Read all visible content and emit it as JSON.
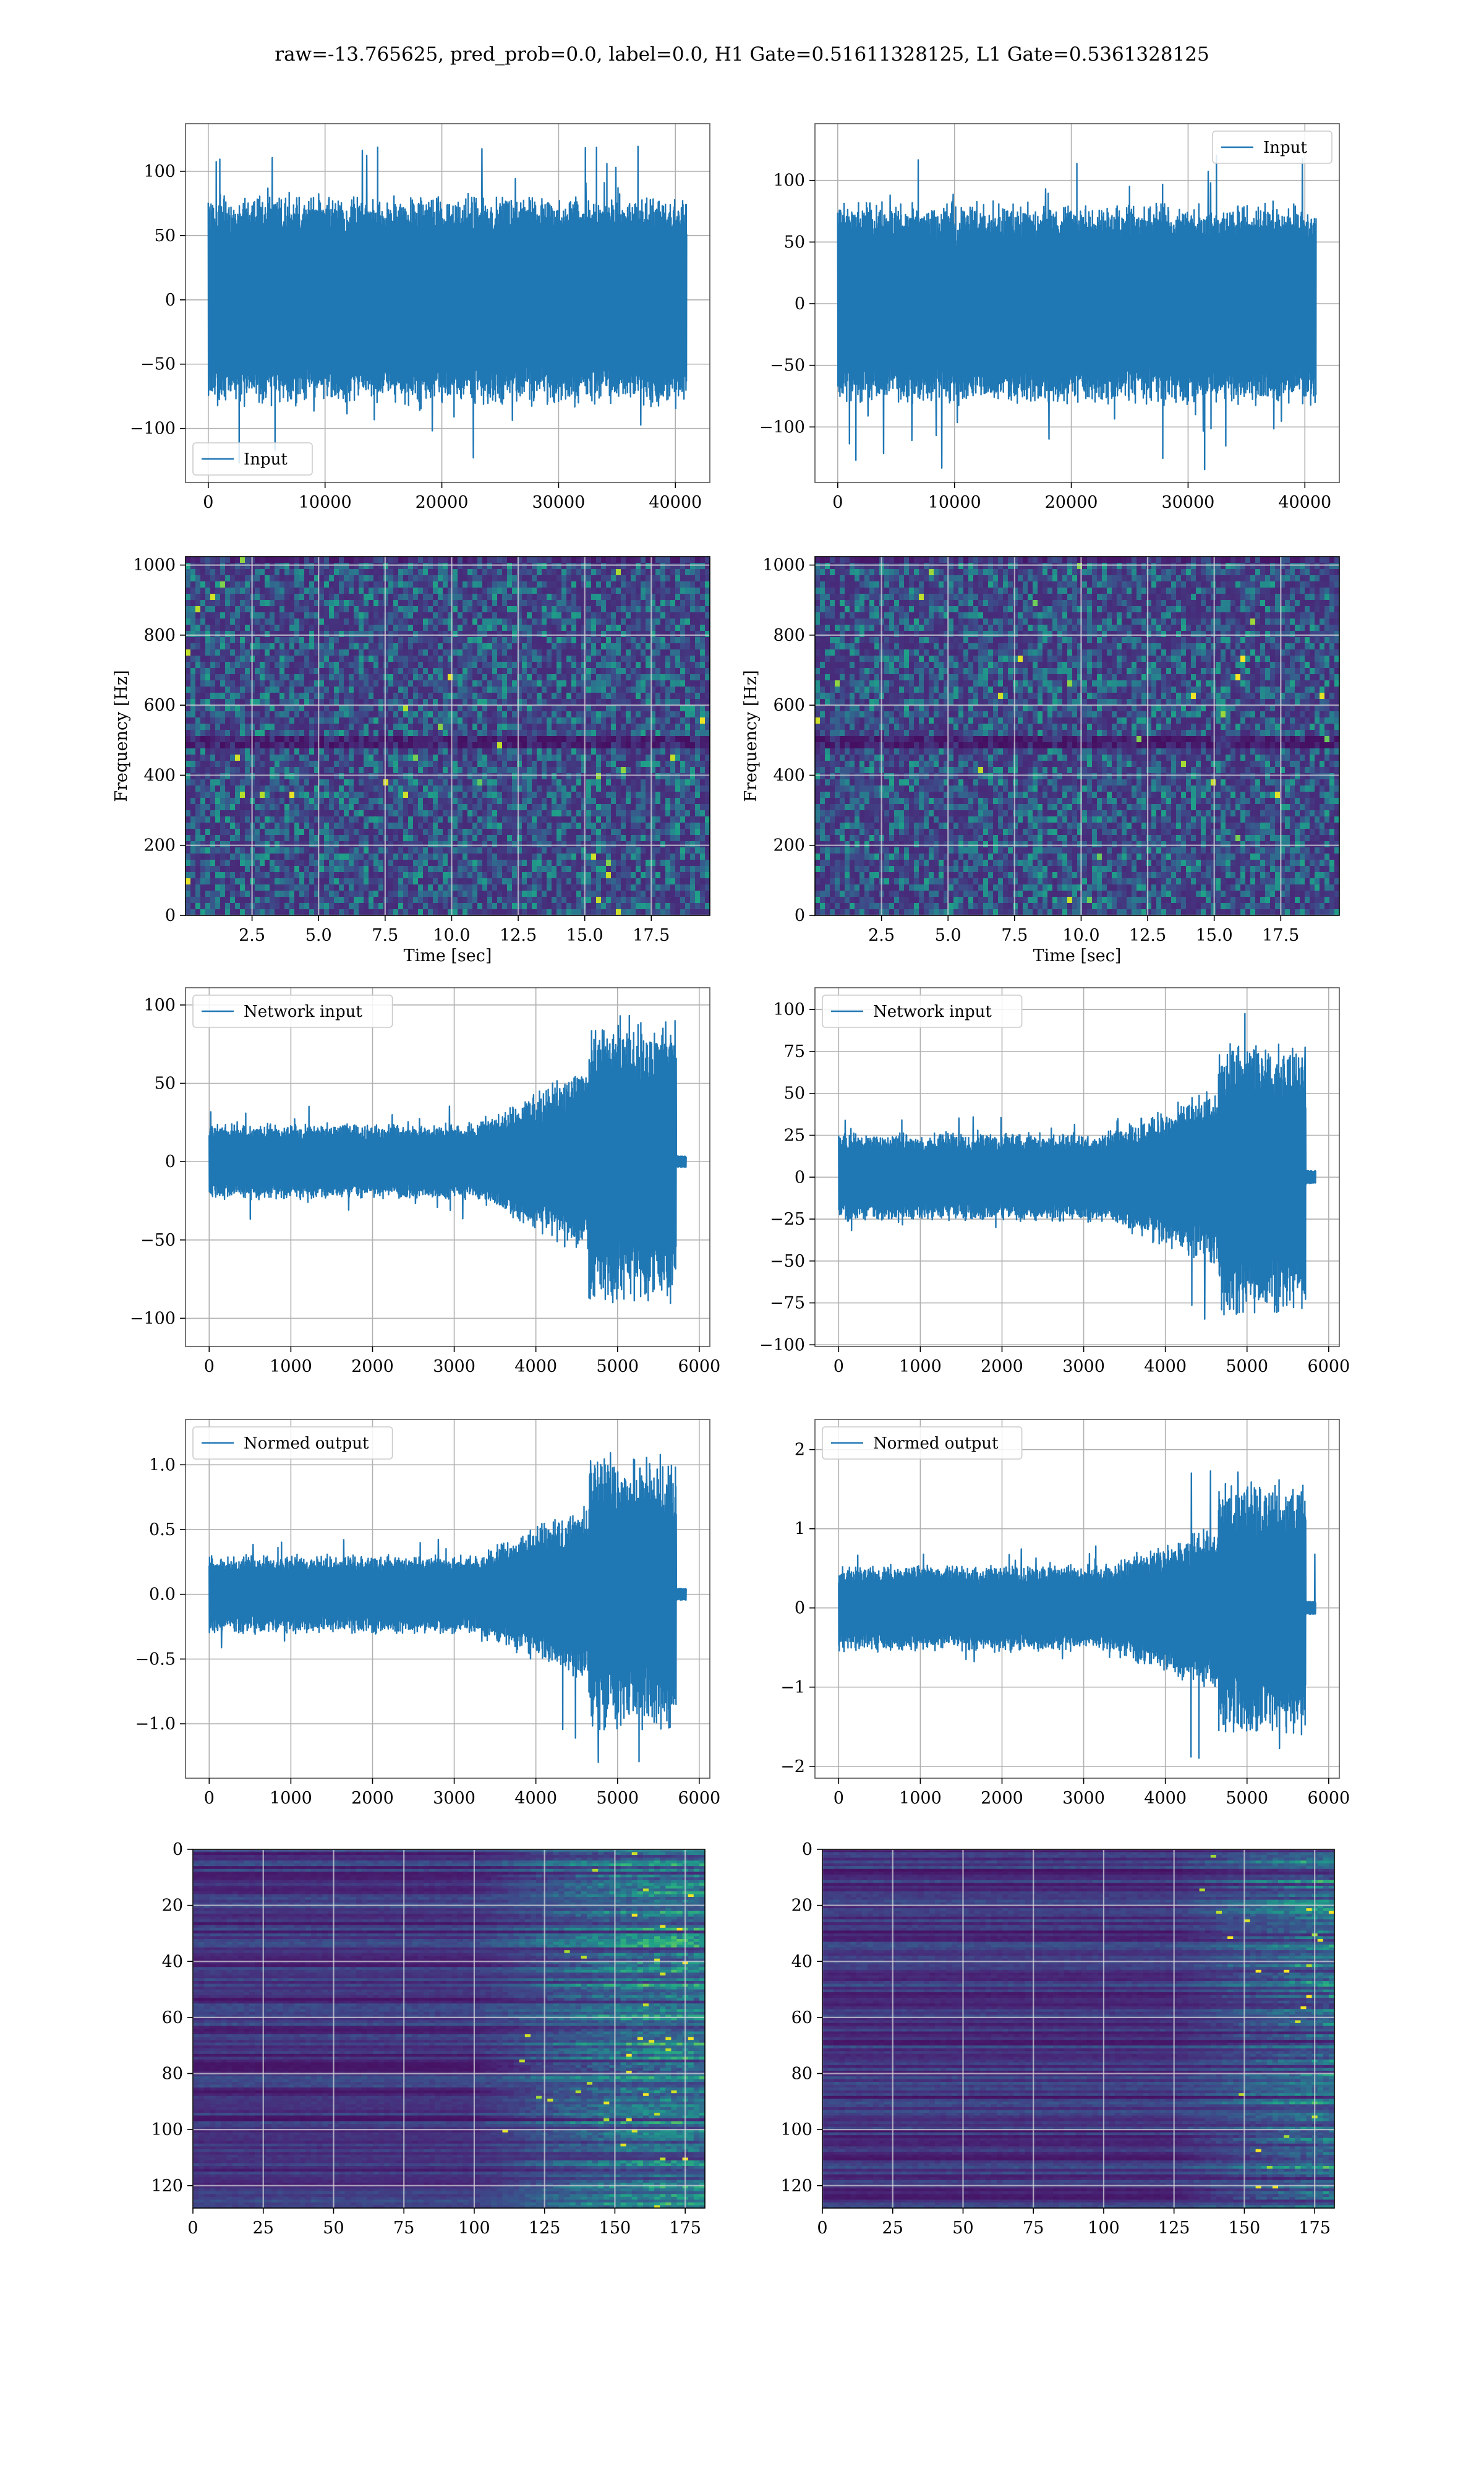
{
  "figure": {
    "suptitle": "raw=-13.765625, pred_prob=0.0, label=0.0, H1 Gate=0.51611328125, L1 Gate=0.5361328125"
  },
  "colors": {
    "line": "#1f77b4",
    "grid": "#b0b0b0",
    "viridis": [
      "#440154",
      "#482878",
      "#3e4989",
      "#31688e",
      "#26828e",
      "#1f9e89",
      "#35b779",
      "#6ece58",
      "#b5de2b",
      "#fde725"
    ]
  },
  "chart_data": [
    {
      "id": "h1-input",
      "type": "line",
      "series": [
        {
          "name": "Input"
        }
      ],
      "legend": "lower-left",
      "grid": true,
      "xlim": [
        -1950,
        42950
      ],
      "ylim": [
        -142,
        137
      ],
      "xticks": [
        0,
        10000,
        20000,
        30000,
        40000
      ],
      "yticks": [
        -100,
        -50,
        0,
        50,
        100
      ],
      "xtick_labels": [
        "0",
        "10000",
        "20000",
        "30000",
        "40000"
      ],
      "ytick_labels": [
        "−100",
        "−50",
        "0",
        "50",
        "100"
      ],
      "signal": {
        "x_start": 0,
        "x_end": 40960,
        "band": 70,
        "spikes": [
          -128,
          126
        ]
      }
    },
    {
      "id": "l1-input",
      "type": "line",
      "series": [
        {
          "name": "Input"
        }
      ],
      "legend": "upper-right",
      "grid": true,
      "xlim": [
        -1950,
        42950
      ],
      "ylim": [
        -145,
        146
      ],
      "xticks": [
        0,
        10000,
        20000,
        30000,
        40000
      ],
      "yticks": [
        -100,
        -50,
        0,
        50,
        100
      ],
      "xtick_labels": [
        "0",
        "10000",
        "20000",
        "30000",
        "40000"
      ],
      "ytick_labels": [
        "−100",
        "−50",
        "0",
        "50",
        "100"
      ],
      "signal": {
        "x_start": 0,
        "x_end": 40960,
        "band": 70,
        "spikes": [
          -136,
          135
        ]
      }
    },
    {
      "id": "h1-spectrogram",
      "type": "heatmap",
      "grid": true,
      "xlabel": "Time [sec]",
      "ylabel": "Frequency [Hz]",
      "xlim": [
        0,
        19.7
      ],
      "ylim": [
        0,
        1024
      ],
      "xticks": [
        2.5,
        5.0,
        7.5,
        10.0,
        12.5,
        15.0,
        17.5
      ],
      "yticks": [
        0,
        200,
        400,
        600,
        800,
        1000
      ],
      "xtick_labels": [
        "2.5",
        "5.0",
        "7.5",
        "10.0",
        "12.5",
        "15.0",
        "17.5"
      ],
      "ytick_labels": [
        "0",
        "200",
        "400",
        "600",
        "800",
        "1000"
      ]
    },
    {
      "id": "l1-spectrogram",
      "type": "heatmap",
      "grid": true,
      "xlabel": "Time [sec]",
      "ylabel": "Frequency [Hz]",
      "xlim": [
        0,
        19.7
      ],
      "ylim": [
        0,
        1024
      ],
      "xticks": [
        2.5,
        5.0,
        7.5,
        10.0,
        12.5,
        15.0,
        17.5
      ],
      "yticks": [
        0,
        200,
        400,
        600,
        800,
        1000
      ],
      "xtick_labels": [
        "2.5",
        "5.0",
        "7.5",
        "10.0",
        "12.5",
        "15.0",
        "17.5"
      ],
      "ytick_labels": [
        "0",
        "200",
        "400",
        "600",
        "800",
        "1000"
      ]
    },
    {
      "id": "h1-network-input",
      "type": "line",
      "series": [
        {
          "name": "Network input"
        }
      ],
      "legend": "upper-left",
      "grid": true,
      "xlim": [
        -290,
        6130
      ],
      "ylim": [
        -118,
        111
      ],
      "xticks": [
        0,
        1000,
        2000,
        3000,
        4000,
        5000,
        6000
      ],
      "yticks": [
        -100,
        -50,
        0,
        50,
        100
      ],
      "xtick_labels": [
        "0",
        "1000",
        "2000",
        "3000",
        "4000",
        "5000",
        "6000"
      ],
      "ytick_labels": [
        "−100",
        "−50",
        "0",
        "50",
        "100"
      ],
      "signal": {
        "x_start": 0,
        "x_end": 5840,
        "band_early": 20,
        "band_late": 95,
        "spikes": [
          -105,
          103
        ]
      }
    },
    {
      "id": "l1-network-input",
      "type": "line",
      "series": [
        {
          "name": "Network input"
        }
      ],
      "legend": "upper-left",
      "grid": true,
      "xlim": [
        -290,
        6130
      ],
      "ylim": [
        -101,
        113
      ],
      "xticks": [
        0,
        1000,
        2000,
        3000,
        4000,
        5000,
        6000
      ],
      "yticks": [
        -100,
        -75,
        -50,
        -25,
        0,
        25,
        50,
        75,
        100
      ],
      "xtick_labels": [
        "0",
        "1000",
        "2000",
        "3000",
        "4000",
        "5000",
        "6000"
      ],
      "ytick_labels": [
        "−100",
        "−75",
        "−50",
        "−25",
        "0",
        "25",
        "50",
        "75",
        "100"
      ],
      "signal": {
        "x_start": 0,
        "x_end": 5840,
        "band_early": 22,
        "band_late": 85,
        "spikes": [
          -93,
          106
        ]
      }
    },
    {
      "id": "h1-normed-output",
      "type": "line",
      "series": [
        {
          "name": "Normed output"
        }
      ],
      "legend": "upper-left",
      "grid": true,
      "xlim": [
        -290,
        6130
      ],
      "ylim": [
        -1.42,
        1.35
      ],
      "xticks": [
        0,
        1000,
        2000,
        3000,
        4000,
        5000,
        6000
      ],
      "yticks": [
        -1.0,
        -0.5,
        0.0,
        0.5,
        1.0
      ],
      "xtick_labels": [
        "0",
        "1000",
        "2000",
        "3000",
        "4000",
        "5000",
        "6000"
      ],
      "ytick_labels": [
        "−1.0",
        "−0.5",
        "0.0",
        "0.5",
        "1.0"
      ],
      "signal": {
        "x_start": 0,
        "x_end": 5840,
        "band_early": 0.25,
        "band_late": 1.1,
        "spikes": [
          -1.3,
          1.25
        ]
      }
    },
    {
      "id": "l1-normed-output",
      "type": "line",
      "series": [
        {
          "name": "Normed output"
        }
      ],
      "legend": "upper-left",
      "grid": true,
      "xlim": [
        -290,
        6130
      ],
      "ylim": [
        -2.15,
        2.38
      ],
      "xticks": [
        0,
        1000,
        2000,
        3000,
        4000,
        5000,
        6000
      ],
      "yticks": [
        -2,
        -1,
        0,
        1,
        2
      ],
      "xtick_labels": [
        "0",
        "1000",
        "2000",
        "3000",
        "4000",
        "5000",
        "6000"
      ],
      "ytick_labels": [
        "−2",
        "−1",
        "0",
        "1",
        "2"
      ],
      "signal": {
        "x_start": 0,
        "x_end": 5840,
        "band_early": 0.45,
        "band_late": 1.7,
        "spikes": [
          -1.95,
          2.25
        ]
      }
    },
    {
      "id": "h1-feature-map",
      "type": "heatmap",
      "grid": true,
      "xlim": [
        0,
        182
      ],
      "ylim": [
        128,
        0
      ],
      "xticks": [
        0,
        25,
        50,
        75,
        100,
        125,
        150,
        175
      ],
      "yticks": [
        0,
        20,
        40,
        60,
        80,
        100,
        120
      ],
      "xtick_labels": [
        "0",
        "25",
        "50",
        "75",
        "100",
        "125",
        "150",
        "175"
      ],
      "ytick_labels": [
        "0",
        "20",
        "40",
        "60",
        "80",
        "100",
        "120"
      ],
      "activity_onset": 100
    },
    {
      "id": "l1-feature-map",
      "type": "heatmap",
      "grid": true,
      "xlim": [
        0,
        182
      ],
      "ylim": [
        128,
        0
      ],
      "xticks": [
        0,
        25,
        50,
        75,
        100,
        125,
        150,
        175
      ],
      "yticks": [
        0,
        20,
        40,
        60,
        80,
        100,
        120
      ],
      "xtick_labels": [
        "0",
        "25",
        "50",
        "75",
        "100",
        "125",
        "150",
        "175"
      ],
      "ytick_labels": [
        "0",
        "20",
        "40",
        "60",
        "80",
        "100",
        "120"
      ],
      "activity_onset": 125
    }
  ]
}
